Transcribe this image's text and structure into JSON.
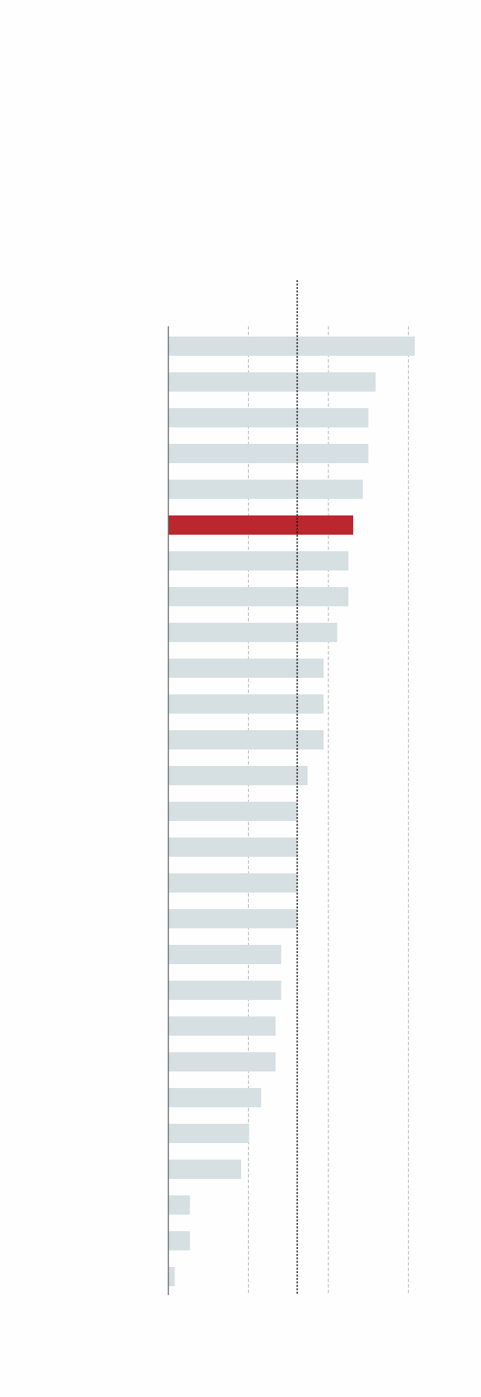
{
  "chart_data": {
    "type": "bar",
    "orientation": "horizontal",
    "categories": [
      null,
      null,
      null,
      null,
      null,
      null,
      null,
      null,
      null,
      null,
      null,
      null,
      null,
      null,
      null,
      null,
      null,
      null,
      null,
      null,
      null,
      null,
      null,
      null,
      null,
      null,
      null
    ],
    "values": [
      30.8,
      25.9,
      25.0,
      25.0,
      24.3,
      23.1,
      22.5,
      22.5,
      21.1,
      19.4,
      19.4,
      19.4,
      17.4,
      16.1,
      16.1,
      16.1,
      16.1,
      14.1,
      14.1,
      13.4,
      13.4,
      11.6,
      10.1,
      9.1,
      2.7,
      2.7,
      0.8
    ],
    "colors": [
      "#d6e0e2",
      "#d6e0e2",
      "#d6e0e2",
      "#d6e0e2",
      "#d6e0e2",
      "#bb272f",
      "#d6e0e2",
      "#d6e0e2",
      "#d6e0e2",
      "#d6e0e2",
      "#d6e0e2",
      "#d6e0e2",
      "#d6e0e2",
      "#d6e0e2",
      "#d6e0e2",
      "#d6e0e2",
      "#d6e0e2",
      "#d6e0e2",
      "#d6e0e2",
      "#d6e0e2",
      "#d6e0e2",
      "#d6e0e2",
      "#d6e0e2",
      "#d6e0e2",
      "#d6e0e2",
      "#d6e0e2",
      "#d6e0e2"
    ],
    "xlim": [
      0,
      31
    ],
    "xticks": [
      10,
      20,
      30
    ],
    "grid": true,
    "reference_line": 16.1
  }
}
